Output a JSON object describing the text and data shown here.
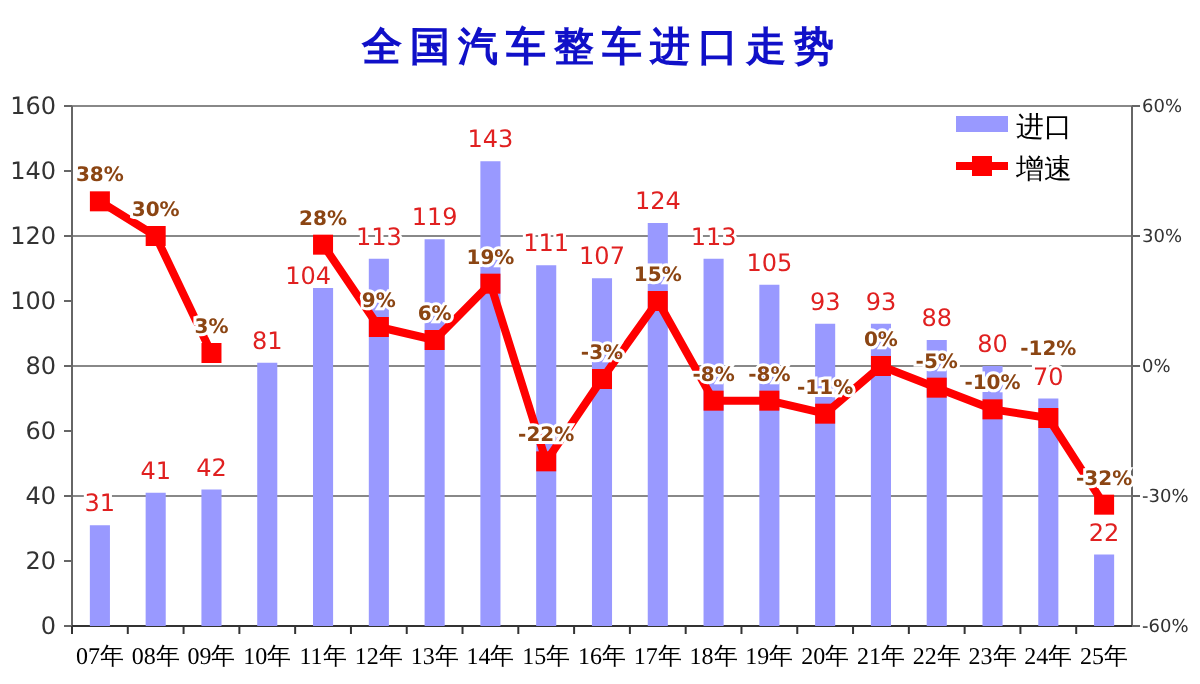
{
  "chart_data": {
    "type": "bar",
    "title": "全国汽车整车进口走势",
    "categories": [
      "07年",
      "08年",
      "09年",
      "10年",
      "11年",
      "12年",
      "13年",
      "14年",
      "15年",
      "16年",
      "17年",
      "18年",
      "19年",
      "20年",
      "21年",
      "22年",
      "23年",
      "24年",
      "25年"
    ],
    "series": [
      {
        "name": "进口",
        "type": "bar",
        "color": "#9999ff",
        "values": [
          31,
          41,
          42,
          81,
          104,
          113,
          119,
          143,
          111,
          107,
          124,
          113,
          105,
          93,
          93,
          88,
          80,
          70,
          22
        ]
      },
      {
        "name": "增速",
        "type": "line",
        "axis": "y2",
        "color": "#ff0000",
        "marker": "square",
        "values": [
          38,
          30,
          3,
          null,
          28,
          9,
          6,
          19,
          -22,
          -3,
          15,
          -8,
          -8,
          -11,
          0,
          -5,
          -10,
          -12,
          -32
        ],
        "value_labels": [
          "38%",
          "30%",
          "3%",
          null,
          "28%",
          "9%",
          "6%",
          "19%",
          "-22%",
          "-3%",
          "15%",
          "-8%",
          "-8%",
          "-11%",
          "0%",
          "-5%",
          "-10%",
          "-12%",
          "-32%"
        ]
      }
    ],
    "ylim": [
      0,
      160
    ],
    "yticks": [
      0,
      20,
      40,
      60,
      80,
      100,
      120,
      140,
      160
    ],
    "y2lim": [
      -60,
      60
    ],
    "y2ticks": [
      {
        "value": -60,
        "label": "-60%"
      },
      {
        "value": -30,
        "label": "-30%"
      },
      {
        "value": 0,
        "label": "0%"
      },
      {
        "value": 30,
        "label": "30%"
      },
      {
        "value": 60,
        "label": "60%"
      }
    ],
    "data_labels": true,
    "grid": true,
    "legend": "top right"
  }
}
